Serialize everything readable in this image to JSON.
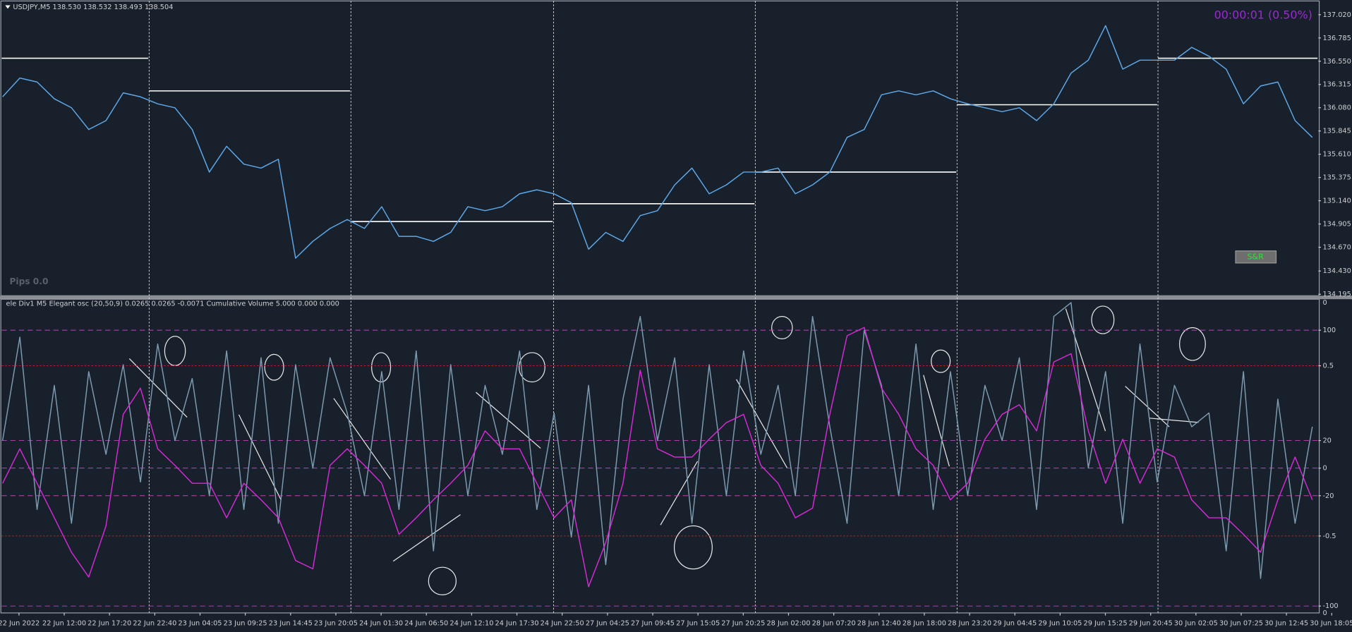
{
  "chart_data": [
    {
      "type": "line",
      "title": "USDJPY,M5  138.530 138.532 138.493 138.504",
      "timer": "00:00:01 (0.50%)",
      "annotations": [
        "Pips 0.0"
      ],
      "buttons": [
        "S&R"
      ],
      "ylim": [
        134.18,
        137.15
      ],
      "yticks": [
        {
          "value": 137.02,
          "label": "137.020"
        },
        136.785,
        {
          "value": 136.55,
          "label": "136.550"
        },
        136.315,
        {
          "value": 136.08,
          "label": "136.080"
        },
        135.845,
        {
          "value": 135.61,
          "label": "135.610"
        },
        135.375,
        {
          "value": 135.14,
          "label": "135.140"
        },
        134.905,
        {
          "value": 134.67,
          "label": "134.670"
        },
        {
          "value": 134.43,
          "label": "134.430"
        },
        134.195
      ],
      "levels": [
        136.58,
        136.25,
        134.93,
        135.11,
        135.43,
        136.11,
        136.58
      ],
      "x_labels": [
        "22 Jun 2022",
        "22 Jun 12:00",
        "22 Jun 17:20",
        "22 Jun 22:40",
        "23 Jun 04:05",
        "23 Jun 09:25",
        "23 Jun 14:45",
        "23 Jun 20:05",
        "24 Jun 01:30",
        "24 Jun 06:50",
        "24 Jun 12:10",
        "24 Jun 17:30",
        "24 Jun 22:50",
        "27 Jun 04:25",
        "27 Jun 09:45",
        "27 Jun 15:05",
        "27 Jun 20:25",
        "28 Jun 02:00",
        "28 Jun 07:20",
        "28 Jun 12:40",
        "28 Jun 18:00",
        "28 Jun 23:20",
        "29 Jun 04:45",
        "29 Jun 10:05",
        "29 Jun 15:25",
        "29 Jun 20:45",
        "30 Jun 02:05",
        "30 Jun 07:25",
        "30 Jun 12:45",
        "30 Jun 18:05"
      ],
      "series": [
        {
          "color": "#5fa8e8",
          "values": [
            136.19,
            136.38,
            136.34,
            136.17,
            136.08,
            135.86,
            135.95,
            136.23,
            136.19,
            136.12,
            136.08,
            135.86,
            135.43,
            135.69,
            135.51,
            135.47,
            135.56,
            134.56,
            134.73,
            134.86,
            134.95,
            134.86,
            135.08,
            134.78,
            134.78,
            134.73,
            134.82,
            135.08,
            135.04,
            135.08,
            135.21,
            135.25,
            135.21,
            135.12,
            134.65,
            134.82,
            134.73,
            134.99,
            135.04,
            135.3,
            135.47,
            135.21,
            135.3,
            135.43,
            135.43,
            135.47,
            135.21,
            135.3,
            135.43,
            135.78,
            135.86,
            136.21,
            136.25,
            136.21,
            136.25,
            136.17,
            136.12,
            136.08,
            136.04,
            136.08,
            135.95,
            136.12,
            136.43,
            136.56,
            136.91,
            136.47,
            136.56,
            136.56,
            136.56,
            136.69,
            136.6,
            136.47,
            136.12,
            136.3,
            136.34,
            135.95,
            135.78
          ]
        }
      ]
    },
    {
      "type": "line",
      "title": "ele Div1 M5 Elegant osc (20,50,9) 0.0265 0.0265 -0.0071  Cumulative Volume 5.000 0.000 0.000",
      "ylim": [
        -105,
        122.5
      ],
      "yticks": [
        100,
        20,
        0,
        -20,
        -100
      ],
      "y2lim": [
        -0.952,
        0.891
      ],
      "y2ticks": [
        0.5,
        -0.5
      ],
      "volume_axis_labels": [
        "0",
        "0"
      ],
      "series": [
        {
          "color": "#7d9bb0",
          "values": [
            20,
            95,
            -30,
            60,
            -40,
            70,
            10,
            75,
            -10,
            90,
            20,
            65,
            -20,
            85,
            -30,
            80,
            -40,
            75,
            0,
            80,
            40,
            -20,
            70,
            -30,
            85,
            -60,
            75,
            -20,
            60,
            10,
            85,
            -30,
            40,
            -50,
            60,
            -70,
            50,
            110,
            20,
            80,
            -40,
            75,
            -20,
            85,
            10,
            60,
            -20,
            110,
            30,
            -40,
            100,
            60,
            -20,
            90,
            -30,
            70,
            -20,
            60,
            20,
            80,
            -30,
            110,
            120,
            0,
            70,
            -40,
            90,
            -10,
            60,
            30,
            40,
            -60,
            70,
            -80,
            50,
            -40,
            30
          ]
        },
        {
          "color": "#d42ad4",
          "values": [
            -11,
            14,
            -11,
            -36,
            -61,
            -79,
            -42,
            39,
            58,
            14,
            2,
            -11,
            -11,
            -36,
            -11,
            -23,
            -36,
            -67,
            -73,
            2,
            14,
            2,
            -11,
            -48,
            -36,
            -23,
            -11,
            2,
            27,
            14,
            14,
            -11,
            -36,
            -23,
            -86,
            -54,
            -11,
            71,
            14,
            8,
            8,
            21,
            33,
            39,
            2,
            -11,
            -36,
            -29,
            39,
            96,
            102,
            58,
            39,
            14,
            2,
            -23,
            -11,
            21,
            39,
            46,
            27,
            77,
            83,
            27,
            -11,
            21,
            -11,
            14,
            8,
            -23,
            -36,
            -36,
            -48,
            -61,
            -23,
            8,
            -23
          ]
        }
      ]
    }
  ]
}
